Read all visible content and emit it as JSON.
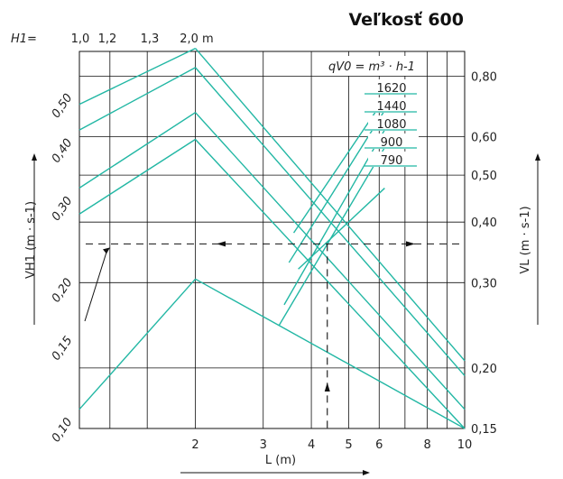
{
  "chart_data": {
    "type": "line",
    "title": "Veľkosť 600",
    "xlabel": "L (m)",
    "x_axis": {
      "scale": "log",
      "range": [
        1,
        10
      ],
      "tick_labels": [
        "2",
        "3",
        "4",
        "5",
        "6",
        "8",
        "10"
      ],
      "tick_values": [
        2,
        3,
        4,
        5,
        6,
        8,
        10
      ]
    },
    "h1_axis": {
      "label": "H1=",
      "tick_labels": [
        "1,0",
        "1,2",
        "1,3",
        "2,0 m"
      ],
      "tick_values": [
        1.0,
        1.2,
        1.3,
        2.0
      ]
    },
    "left_axis": {
      "label": "VH1 (m · s-1)",
      "scale": "log",
      "range": [
        0.1,
        0.65
      ],
      "tick_labels": [
        "0,10",
        "0,15",
        "0,20",
        "0,30",
        "0,40",
        "0,50"
      ],
      "tick_values": [
        0.1,
        0.15,
        0.2,
        0.3,
        0.4,
        0.5
      ]
    },
    "right_axis": {
      "label": "VL (m · s-1)",
      "scale": "log",
      "range": [
        0.15,
        0.9
      ],
      "tick_labels": [
        "0,15",
        "0,20",
        "0,30",
        "0,40",
        "0,50",
        "0,60",
        "0,80"
      ],
      "tick_values": [
        0.15,
        0.2,
        0.3,
        0.4,
        0.5,
        0.6,
        0.8
      ]
    },
    "legend_title": "qV0 = m³ · h-1",
    "series": [
      {
        "name": "1620",
        "rise": [
          [
            1.0,
            0.5
          ],
          [
            2.0,
            0.66
          ]
        ],
        "fall": [
          [
            2.0,
            0.66
          ],
          [
            10.0,
            0.14
          ]
        ],
        "vl_line": [
          [
            3.6,
            0.38
          ],
          [
            6.2,
            0.72
          ]
        ]
      },
      {
        "name": "1440",
        "rise": [
          [
            1.0,
            0.44
          ],
          [
            2.0,
            0.6
          ]
        ],
        "fall": [
          [
            2.0,
            0.6
          ],
          [
            10.0,
            0.13
          ]
        ],
        "vl_line": [
          [
            3.5,
            0.33
          ],
          [
            6.2,
            0.68
          ]
        ]
      },
      {
        "name": "1080",
        "rise": [
          [
            1.0,
            0.33
          ],
          [
            2.0,
            0.48
          ]
        ],
        "fall": [
          [
            2.0,
            0.48
          ],
          [
            10.0,
            0.11
          ]
        ],
        "vl_line": [
          [
            3.4,
            0.27
          ],
          [
            6.2,
            0.62
          ]
        ]
      },
      {
        "name": "900",
        "rise": [
          [
            1.0,
            0.29
          ],
          [
            2.0,
            0.42
          ]
        ],
        "fall": [
          [
            2.0,
            0.42
          ],
          [
            10.0,
            0.1
          ]
        ],
        "vl_line": [
          [
            3.3,
            0.245
          ],
          [
            6.2,
            0.57
          ]
        ]
      },
      {
        "name": "790",
        "rise": [
          [
            1.0,
            0.11
          ],
          [
            2.0,
            0.21
          ]
        ],
        "fall": [
          [
            2.0,
            0.21
          ],
          [
            10.0,
            0.1
          ]
        ],
        "vl_line": [
          [
            3.7,
            0.32
          ],
          [
            6.2,
            0.47
          ]
        ]
      }
    ],
    "example_path": {
      "L": 4.4,
      "V": 0.25,
      "VH1": 0.25,
      "VL": 0.25
    },
    "grid": true,
    "legend": "top-right"
  }
}
